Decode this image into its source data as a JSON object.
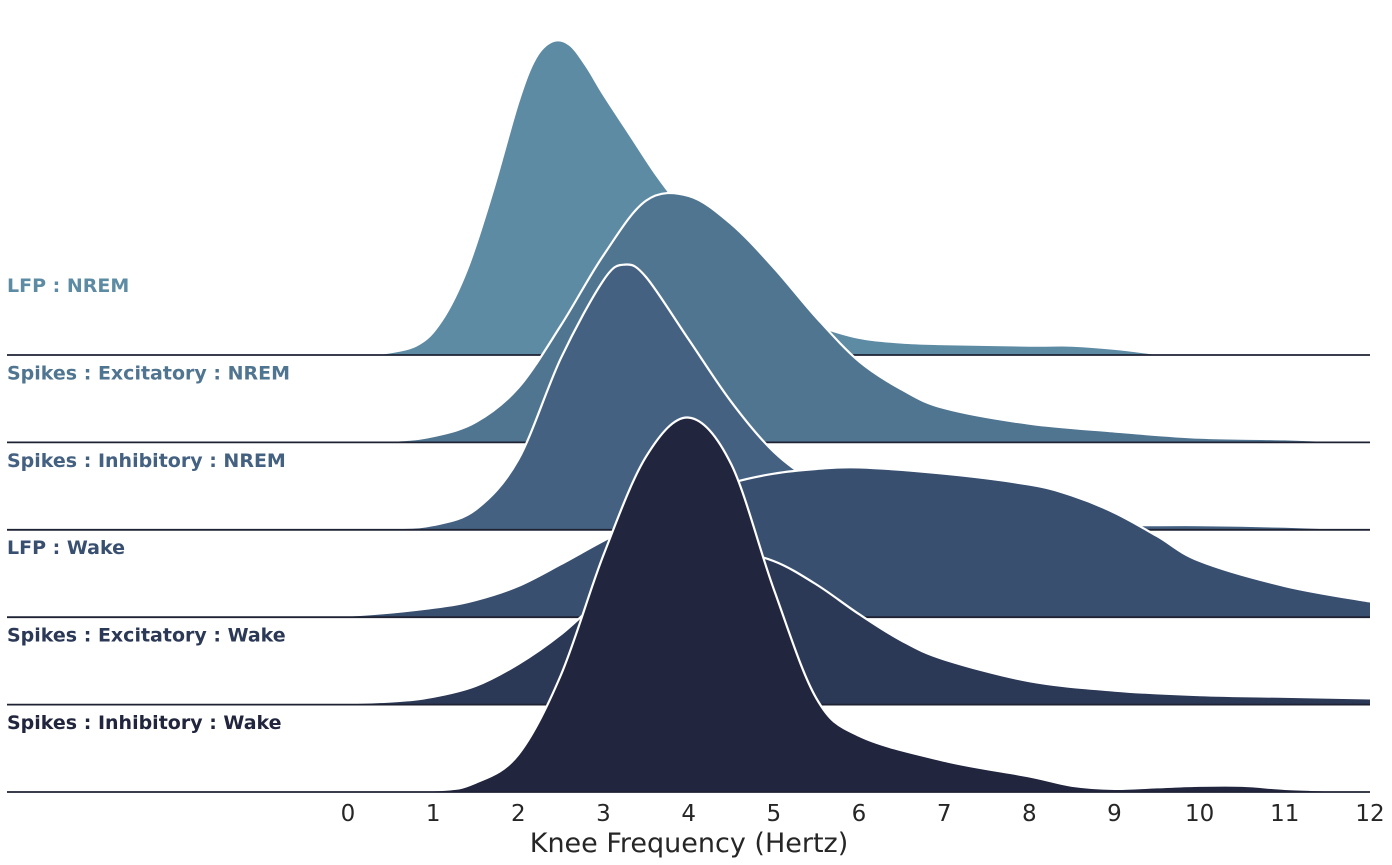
{
  "chart_data": {
    "type": "ridgeline",
    "xlabel": "Knee Frequency (Hertz)",
    "xlim": [
      -4.1,
      12
    ],
    "xticks": [
      0,
      1,
      2,
      3,
      4,
      5,
      6,
      7,
      8,
      9,
      10,
      11,
      12
    ],
    "colors": [
      "#5e8ba4",
      "#507590",
      "#446182",
      "#384f70",
      "#2b3856",
      "#21253d"
    ],
    "series": [
      {
        "name": "LFP : NREM",
        "x": [
          0.3,
          0.8,
          1.1,
          1.4,
          1.7,
          2.0,
          2.2,
          2.4,
          2.6,
          2.8,
          3.0,
          3.3,
          3.6,
          3.9,
          4.2,
          4.6,
          5.0,
          5.5,
          6.0,
          6.5,
          7.0,
          8.0,
          8.5,
          9.0,
          9.6
        ],
        "density": [
          0.0,
          0.06,
          0.22,
          0.55,
          1.05,
          1.62,
          1.9,
          2.01,
          1.99,
          1.85,
          1.67,
          1.42,
          1.17,
          0.95,
          0.74,
          0.51,
          0.3,
          0.19,
          0.11,
          0.08,
          0.07,
          0.06,
          0.06,
          0.04,
          0.0
        ]
      },
      {
        "name": "Spikes : Excitatory : NREM",
        "x": [
          -0.5,
          0.5,
          1.0,
          1.5,
          2.0,
          2.5,
          3.0,
          3.5,
          4.0,
          4.5,
          5.0,
          5.5,
          6.0,
          6.5,
          7.0,
          8.0,
          9.0,
          10.0,
          11.0,
          12.0
        ],
        "density": [
          0.0,
          0.01,
          0.04,
          0.13,
          0.35,
          0.75,
          1.2,
          1.55,
          1.58,
          1.4,
          1.12,
          0.8,
          0.52,
          0.34,
          0.22,
          0.12,
          0.07,
          0.03,
          0.02,
          0.0
        ]
      },
      {
        "name": "Spikes : Inhibitory : NREM",
        "x": [
          -0.5,
          0.5,
          1.0,
          1.5,
          2.0,
          2.5,
          3.0,
          3.25,
          3.5,
          4.0,
          4.5,
          5.0,
          5.5,
          6.0,
          6.5,
          7.0,
          8.0,
          9.0,
          10.0,
          11.0,
          12.0
        ],
        "density": [
          0.0,
          0.01,
          0.03,
          0.13,
          0.45,
          1.1,
          1.6,
          1.7,
          1.62,
          1.22,
          0.82,
          0.5,
          0.3,
          0.19,
          0.13,
          0.09,
          0.04,
          0.03,
          0.03,
          0.02,
          0.0
        ]
      },
      {
        "name": "LFP : Wake",
        "x": [
          -1.5,
          0.0,
          1.0,
          1.5,
          2.0,
          2.5,
          3.0,
          3.5,
          4.0,
          4.5,
          5.0,
          5.5,
          6.0,
          7.0,
          8.0,
          8.5,
          9.0,
          9.5,
          10.0,
          11.0,
          12.0
        ],
        "density": [
          0.0,
          0.01,
          0.06,
          0.11,
          0.2,
          0.34,
          0.49,
          0.63,
          0.76,
          0.86,
          0.92,
          0.95,
          0.96,
          0.92,
          0.85,
          0.78,
          0.67,
          0.52,
          0.36,
          0.2,
          0.1
        ]
      },
      {
        "name": "Spikes : Excitatory : Wake",
        "x": [
          -0.5,
          0.5,
          1.0,
          1.5,
          2.0,
          2.5,
          3.0,
          3.5,
          4.0,
          4.5,
          5.0,
          5.5,
          6.0,
          6.5,
          7.0,
          8.0,
          9.0,
          10.0,
          11.0,
          12.0
        ],
        "density": [
          0.0,
          0.02,
          0.05,
          0.12,
          0.26,
          0.45,
          0.69,
          0.88,
          0.96,
          0.98,
          0.92,
          0.77,
          0.58,
          0.41,
          0.29,
          0.15,
          0.09,
          0.06,
          0.05,
          0.04
        ]
      },
      {
        "name": "Spikes : Inhibitory : Wake",
        "x": [
          -0.5,
          1.0,
          1.5,
          2.0,
          2.5,
          3.0,
          3.5,
          4.0,
          4.5,
          5.0,
          5.5,
          6.0,
          7.0,
          8.0,
          8.5,
          9.0,
          9.5,
          10.0,
          10.5,
          11.0,
          11.5,
          12.0
        ],
        "density": [
          0.0,
          0.01,
          0.06,
          0.24,
          0.75,
          1.52,
          2.15,
          2.4,
          2.1,
          1.3,
          0.6,
          0.36,
          0.2,
          0.1,
          0.04,
          0.02,
          0.03,
          0.04,
          0.04,
          0.02,
          0.01,
          0.0
        ]
      }
    ]
  }
}
